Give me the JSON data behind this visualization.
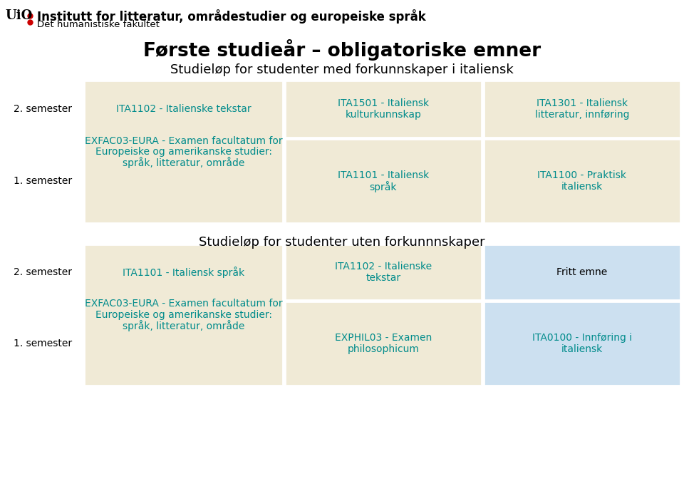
{
  "title_main": "Første studieår – obligatoriske emner",
  "subtitle1": "Studieløp for studenter med forkunnskaper i italiensk",
  "subtitle2": "Studieløp for studenter uten forkunnnskaper",
  "header_inst": "Institutt for litteratur, områdestudier og europeiske språk",
  "header_fak": "Det humanistiske fakultet",
  "bg_color": "#ffffff",
  "beige_color": "#f0ead6",
  "blue_color": "#cce0f0",
  "link_color": "#008b8b",
  "section1": {
    "row2": {
      "semester": "2. semester",
      "col1": {
        "text": "ITA1102 - Italienske tekstar",
        "bg": "#f0ead6"
      },
      "col2": {
        "text": "ITA1501 - Italiensk\nkulturkunnskap",
        "bg": "#f0ead6"
      },
      "col3": {
        "text": "ITA1301 - Italiensk\nlitteratur, innføring",
        "bg": "#f0ead6"
      }
    },
    "row1": {
      "semester": "1. semester",
      "col1": {
        "text": "EXFAC03-EURA - Examen facultatum for\nEuropeiske og amerikanske studier:\nspråk, litteratur, område",
        "bg": "#f0ead6"
      },
      "col2": {
        "text": "ITA1101 - Italiensk\nspråk",
        "bg": "#f0ead6"
      },
      "col3": {
        "text": "ITA1100 - Praktisk\nitaliensk",
        "bg": "#f0ead6"
      }
    }
  },
  "section2": {
    "row2": {
      "semester": "2. semester",
      "col1": {
        "text": "ITA1101 - Italiensk språk",
        "bg": "#f0ead6"
      },
      "col2": {
        "text": "ITA1102 - Italienske\ntekstar",
        "bg": "#f0ead6"
      },
      "col3": {
        "text": "Fritt emne",
        "bg": "#cce0f0",
        "text_color": "#000000"
      }
    },
    "row1": {
      "semester": "1. semester",
      "col1": {
        "text": "EXFAC03-EURA - Examen facultatum for\nEuropeiske og amerikanske studier:\nspråk, litteratur, område",
        "bg": "#f0ead6"
      },
      "col2": {
        "text": "EXPHIL03 - Examen\nphilosophicum",
        "bg": "#f0ead6"
      },
      "col3": {
        "text": "ITA0100 - Innføring i\nitaliensk",
        "bg": "#cce0f0"
      }
    }
  }
}
